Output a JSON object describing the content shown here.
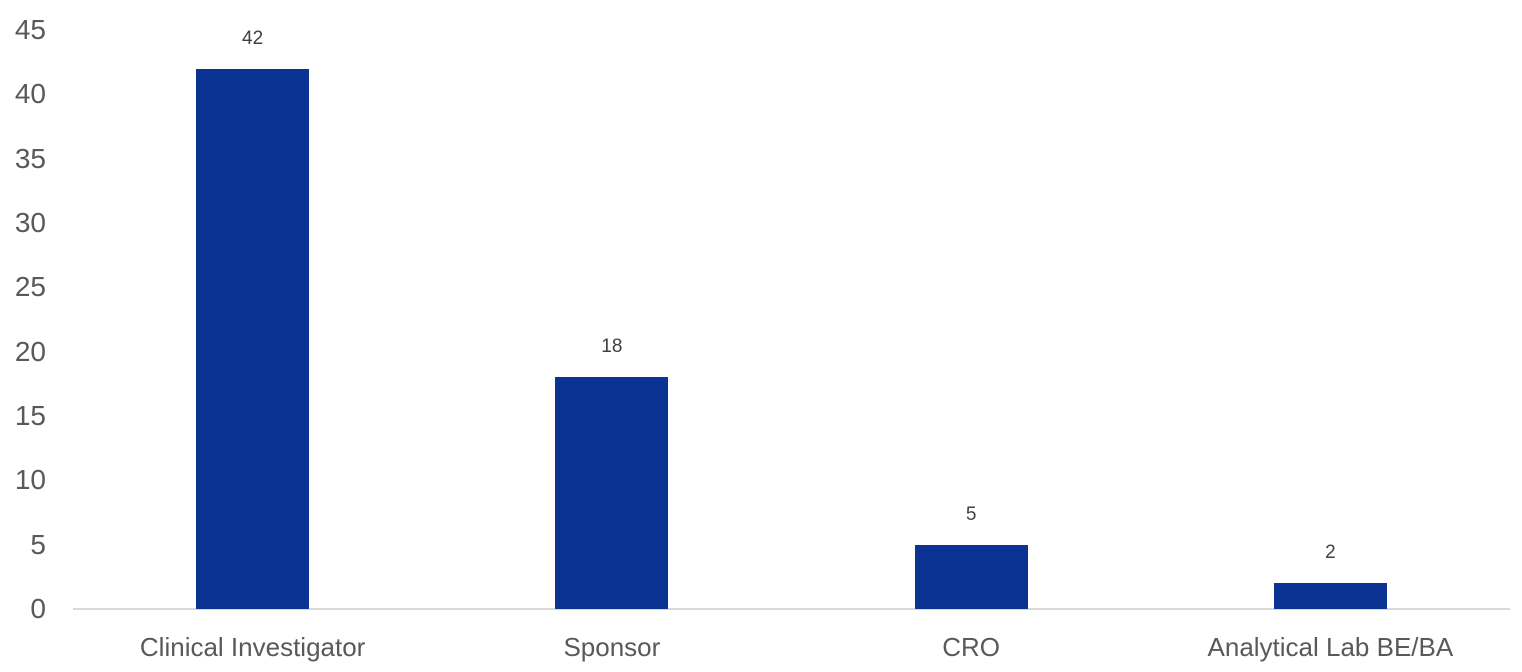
{
  "chart_data": {
    "type": "bar",
    "title": "",
    "xlabel": "",
    "ylabel": "",
    "categories": [
      "Clinical Investigator",
      "Sponsor",
      "CRO",
      "Analytical Lab BE/BA"
    ],
    "values": [
      42,
      18,
      5,
      2
    ],
    "data_labels": [
      "42",
      "18",
      "5",
      "2"
    ],
    "ylim": [
      0,
      45
    ],
    "yticks": [
      0,
      5,
      10,
      15,
      20,
      25,
      30,
      35,
      40,
      45
    ],
    "grid": false,
    "legend": false,
    "colors": {
      "bar_fill": "#0A3394",
      "axis_line": "#D9D9D9",
      "axis_tick_label": "#595959",
      "category_label": "#595959",
      "data_label": "#404040",
      "background": "#FFFFFF"
    }
  }
}
